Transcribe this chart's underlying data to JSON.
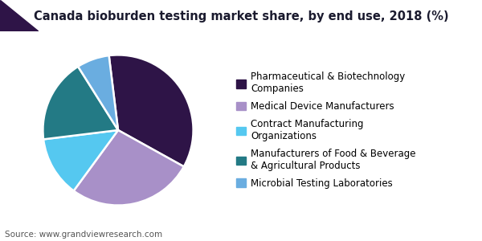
{
  "title": "Canada bioburden testing market share, by end use, 2018 (%)",
  "source": "Source: www.grandviewresearch.com",
  "slices": [
    {
      "label": "Pharmaceutical & Biotechnology\nCompanies",
      "value": 35,
      "color": "#2e1447"
    },
    {
      "label": "Medical Device Manufacturers",
      "value": 27,
      "color": "#a890c8"
    },
    {
      "label": "Contract Manufacturing\nOrganizations",
      "value": 13,
      "color": "#55c8f0"
    },
    {
      "label": "Manufacturers of Food & Beverage\n& Agricultural Products",
      "value": 18,
      "color": "#237a85"
    },
    {
      "label": "Microbial Testing Laboratories",
      "value": 7,
      "color": "#6aade0"
    }
  ],
  "background_color": "#ffffff",
  "title_fontsize": 10.5,
  "legend_fontsize": 8.5,
  "source_fontsize": 7.5,
  "header_line_color": "#5a2d82",
  "header_dark_color": "#2e1447",
  "startangle": 97
}
